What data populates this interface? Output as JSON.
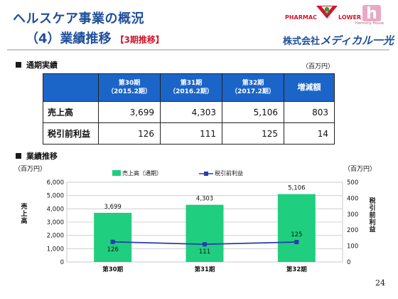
{
  "header": {
    "title_line1": "ヘルスケア事業の概況",
    "title_line2": "（4）業績推移",
    "title_tag": "【3期推移】",
    "logos": {
      "pharmac": "PHARMAC",
      "lower": "LOWER",
      "harmony_house": "Harmony House",
      "h_letter": "h"
    },
    "company_prefix": "株式会社",
    "company_brand": "メディカル一光"
  },
  "table_section": {
    "heading": "通期実績",
    "unit": "（百万円）",
    "columns": [
      {
        "period": "第30期",
        "year": "（2015.2期）"
      },
      {
        "period": "第31期",
        "year": "（2016.2期）"
      },
      {
        "period": "第32期",
        "year": "（2017.2期）"
      },
      {
        "period": "増減額",
        "year": ""
      }
    ],
    "rows": [
      {
        "label": "売上高",
        "values": [
          "3,699",
          "4,303",
          "5,106",
          "803"
        ]
      },
      {
        "label": "税引前利益",
        "values": [
          "126",
          "111",
          "125",
          "14"
        ]
      }
    ]
  },
  "chart_section": {
    "heading": "業績推移",
    "unit_left": "（百万円）",
    "unit_right": "（百万円）"
  },
  "chart_data": {
    "type": "bar",
    "categories": [
      "第30期",
      "第31期",
      "第32期"
    ],
    "series": [
      {
        "name": "売上高（通期）",
        "type": "bar",
        "axis": "left",
        "values": [
          3699,
          4303,
          5106
        ],
        "labels": [
          "3,699",
          "4,303",
          "5,106"
        ],
        "color": "#1fce7e"
      },
      {
        "name": "税引前利益",
        "type": "line",
        "axis": "right",
        "values": [
          126,
          111,
          125
        ],
        "labels": [
          "126",
          "111",
          "125"
        ],
        "color": "#2a3bb0"
      }
    ],
    "ylabel": "売上高",
    "y2label": "税引前利益",
    "ylim": [
      0,
      6000
    ],
    "yticks": [
      "0",
      "1,000",
      "2,000",
      "3,000",
      "4,000",
      "5,000",
      "6,000"
    ],
    "y2lim": [
      0,
      500
    ],
    "y2ticks": [
      "0",
      "100",
      "200",
      "300",
      "400",
      "500"
    ],
    "grid": true,
    "legend_position": "top"
  },
  "colors": {
    "title": "#1f4e9b",
    "tag": "#d0162a",
    "table_header": "#1c65c8"
  },
  "page_number": "24"
}
